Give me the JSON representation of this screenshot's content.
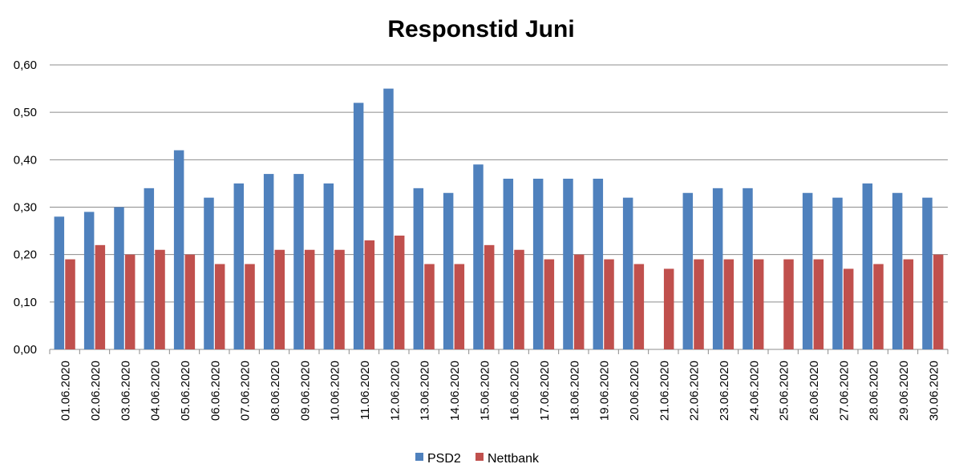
{
  "chart_data": {
    "type": "bar",
    "title": "Responstid Juni",
    "xlabel": "",
    "ylabel": "",
    "ylim": [
      0,
      0.6
    ],
    "yticks": [
      "0,00",
      "0,10",
      "0,20",
      "0,30",
      "0,40",
      "0,50",
      "0,60"
    ],
    "ytick_values": [
      0,
      0.1,
      0.2,
      0.3,
      0.4,
      0.5,
      0.6
    ],
    "grid": true,
    "legend_position": "bottom",
    "categories": [
      "01.06.2020",
      "02.06.2020",
      "03.06.2020",
      "04.06.2020",
      "05.06.2020",
      "06.06.2020",
      "07.06.2020",
      "08.06.2020",
      "09.06.2020",
      "10.06.2020",
      "11.06.2020",
      "12.06.2020",
      "13.06.2020",
      "14.06.2020",
      "15.06.2020",
      "16.06.2020",
      "17.06.2020",
      "18.06.2020",
      "19.06.2020",
      "20.06.2020",
      "21.06.2020",
      "22.06.2020",
      "23.06.2020",
      "24.06.2020",
      "25.06.2020",
      "26.06.2020",
      "27.06.2020",
      "28.06.2020",
      "29.06.2020",
      "30.06.2020"
    ],
    "series": [
      {
        "name": "PSD2",
        "color": "#4f81bd",
        "values": [
          0.28,
          0.29,
          0.3,
          0.34,
          0.42,
          0.32,
          0.35,
          0.37,
          0.37,
          0.35,
          0.52,
          0.55,
          0.34,
          0.33,
          0.39,
          0.36,
          0.36,
          0.36,
          0.36,
          0.32,
          null,
          0.33,
          0.34,
          0.34,
          null,
          0.33,
          0.32,
          0.35,
          0.33,
          0.32
        ]
      },
      {
        "name": "Nettbank",
        "color": "#c0504d",
        "values": [
          0.19,
          0.22,
          0.2,
          0.21,
          0.2,
          0.18,
          0.18,
          0.21,
          0.21,
          0.21,
          0.23,
          0.24,
          0.18,
          0.18,
          0.22,
          0.21,
          0.19,
          0.2,
          0.19,
          0.18,
          0.17,
          0.19,
          0.19,
          0.19,
          0.19,
          0.19,
          0.17,
          0.18,
          0.19,
          0.2
        ]
      }
    ]
  }
}
